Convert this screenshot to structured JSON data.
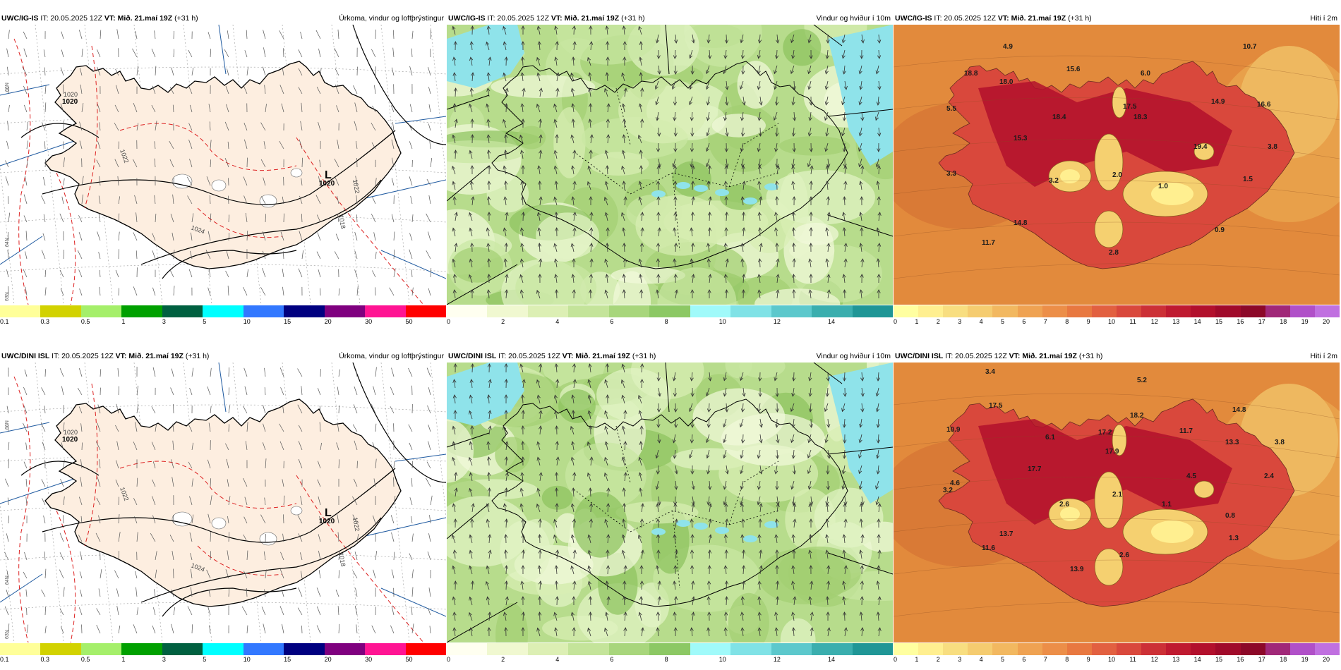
{
  "rows": [
    {
      "model": "UWC/IG-IS",
      "it": " IT: 20.05.2025 12Z ",
      "vt_label": "VT:",
      "vt_value": "Mið. 21.maí 19Z",
      "lead": " (+31 h)"
    },
    {
      "model": "UWC/DINI ISL",
      "it": " IT: 20.05.2025 12Z ",
      "vt_label": "VT:",
      "vt_value": "Mið. 21.maí 19Z",
      "lead": " (+31 h)"
    }
  ],
  "titles": {
    "precip": "Úrkoma, vindur og loftþrýstingur",
    "wind": "Vindur og hviður í 10m",
    "temp": "Hiti í 2m"
  },
  "precip_panel": {
    "low_letter": "L",
    "isobar_labels": [
      "1020",
      "1020",
      "1022",
      "1020",
      "1022",
      "1024",
      "1018"
    ],
    "grid_labels": [
      "66N",
      "64N",
      "63N"
    ],
    "colorbar_colors": [
      "#ffff99",
      "#d2d200",
      "#a5ef6a",
      "#00a000",
      "#006040",
      "#00ffff",
      "#3278ff",
      "#000080",
      "#7f007f",
      "#ff1493",
      "#ff0000"
    ],
    "colorbar_ticks": [
      "0.1",
      "0.3",
      "0.5",
      "1",
      "3",
      "5",
      "10",
      "15",
      "20",
      "30",
      "50"
    ]
  },
  "wind_panel": {
    "colorbar_colors": [
      "#fffff0",
      "#f0f8d0",
      "#dcefb4",
      "#c4e49a",
      "#a8d67c",
      "#8cc864",
      "#a0fafa",
      "#80e2e6",
      "#5cc8cc",
      "#3aaeae",
      "#1f9696"
    ],
    "colorbar_ticks": [
      "0",
      "2",
      "4",
      "6",
      "8",
      "10",
      "12",
      "14"
    ]
  },
  "temp_panel": {
    "colorbar_colors": [
      "#ffffa0",
      "#ffef90",
      "#f8de80",
      "#f5cc70",
      "#f2b860",
      "#efa252",
      "#ec8e48",
      "#e87840",
      "#e26040",
      "#d9483c",
      "#cc3036",
      "#bf1a30",
      "#b2102c",
      "#a00a2a",
      "#8c0828",
      "#a02878",
      "#b050c8",
      "#c070e0"
    ],
    "colorbar_ticks": [
      "0",
      "1",
      "2",
      "3",
      "4",
      "5",
      "6",
      "7",
      "8",
      "9",
      "10",
      "11",
      "12",
      "13",
      "14",
      "15",
      "16",
      "17",
      "18",
      "19",
      "20"
    ]
  },
  "temp_labels_top": [
    "4.9",
    "10.7",
    "18.8",
    "18.0",
    "15.6",
    "6.0",
    "14.9",
    "16.6",
    "5.5",
    "17.5",
    "18.4",
    "18.3",
    "15.3",
    "19.4",
    "3.8",
    "3.3",
    "3.2",
    "2.0",
    "1.0",
    "1.5",
    "14.8",
    "0.9",
    "11.7",
    "2.8"
  ],
  "temp_labels_bottom": [
    "3.4",
    "5.2",
    "17.5",
    "18.2",
    "14.8",
    "10.9",
    "6.1",
    "17.2",
    "11.7",
    "13.3",
    "3.8",
    "17.9",
    "17.7",
    "4.5",
    "2.4",
    "4.6",
    "3.2",
    "2.6",
    "2.1",
    "1.1",
    "0.8",
    "13.7",
    "1.3",
    "11.6",
    "2.6",
    "13.9"
  ]
}
